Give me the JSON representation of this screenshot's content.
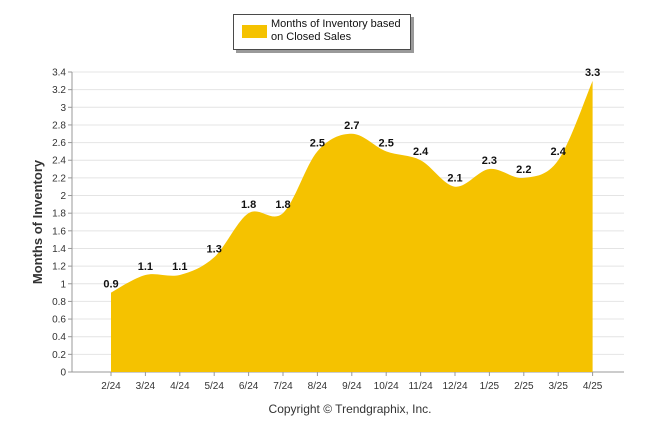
{
  "chart_data": {
    "type": "area",
    "title": "",
    "xlabel": "",
    "ylabel": "Months of Inventory",
    "categories": [
      "2/24",
      "3/24",
      "4/24",
      "5/24",
      "6/24",
      "7/24",
      "8/24",
      "9/24",
      "10/24",
      "11/24",
      "12/24",
      "1/25",
      "2/25",
      "3/25",
      "4/25"
    ],
    "series": [
      {
        "name": "Months of Inventory based on Closed Sales",
        "values": [
          0.9,
          1.1,
          1.1,
          1.3,
          1.8,
          1.8,
          2.5,
          2.7,
          2.5,
          2.4,
          2.1,
          2.3,
          2.2,
          2.4,
          3.3
        ],
        "labels": [
          "0.9",
          "1.1",
          "1.1",
          "1.3",
          "1.8",
          "1.8",
          "2.5",
          "2.7",
          "2.5",
          "2.4",
          "2.1",
          "2.3",
          "2.2",
          "2.4",
          "3.3"
        ],
        "color": "#f5c200"
      }
    ],
    "ylim": [
      0,
      3.4
    ],
    "yticks": [
      "0",
      "0.2",
      "0.4",
      "0.6",
      "0.8",
      "1",
      "1.2",
      "1.4",
      "1.6",
      "1.8",
      "2",
      "2.2",
      "2.4",
      "2.6",
      "2.8",
      "3",
      "3.2",
      "3.4"
    ],
    "grid": true,
    "legend_position": "top-center"
  },
  "legend": {
    "label": "Months of Inventory based on Closed Sales"
  },
  "footer": {
    "copyright": "Copyright © Trendgraphix, Inc."
  }
}
